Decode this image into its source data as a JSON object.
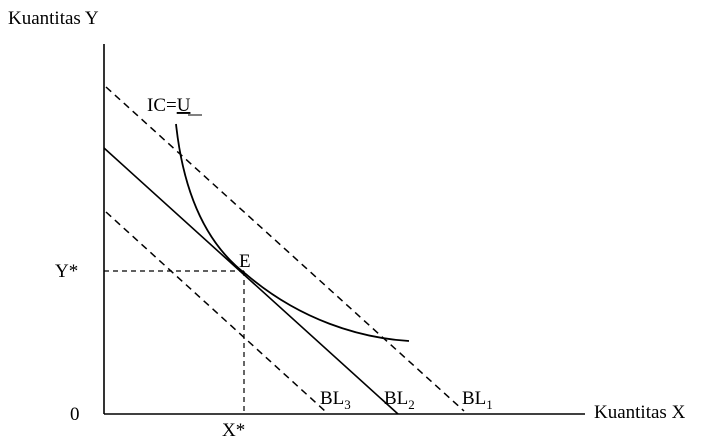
{
  "labels": {
    "y_axis": "Kuantitas Y",
    "x_axis": "Kuantitas X",
    "origin": "0",
    "y_star": "Y*",
    "x_star": "X*",
    "equilibrium": "E",
    "indifference_curve_prefix": "IC=",
    "indifference_curve_u": "U",
    "budget_line_base": "BL",
    "budget_line_3_sub": "3",
    "budget_line_2_sub": "2",
    "budget_line_1_sub": "1"
  },
  "colors": {
    "ink": "#000000",
    "background": "#ffffff"
  }
}
